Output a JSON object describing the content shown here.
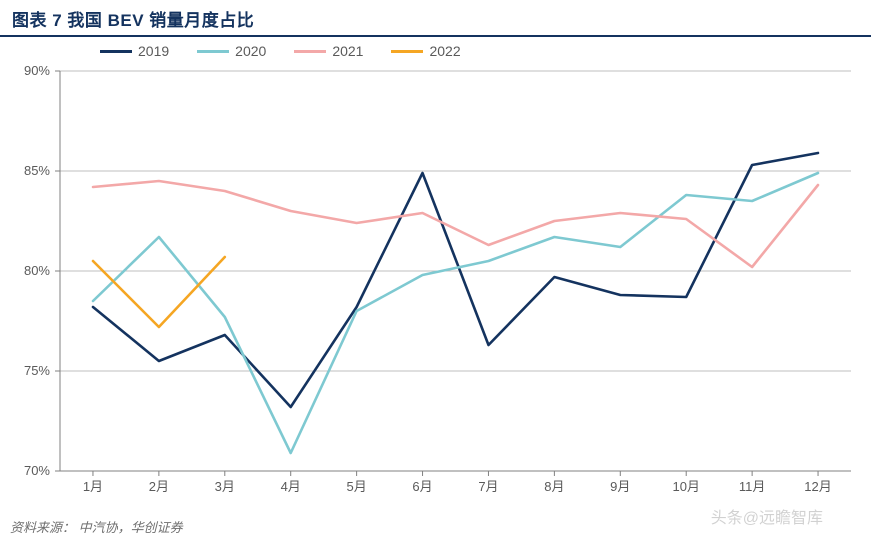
{
  "title": "图表 7 我国 BEV 销量月度占比",
  "source_label": "资料来源：  中汽协，华创证券",
  "watermark": "头条@远瞻智库",
  "chart": {
    "type": "line",
    "background_color": "#ffffff",
    "grid_color": "#bfbfbf",
    "axis_color": "#808080",
    "tick_font_color": "#5a5a5a",
    "tick_fontsize": 13,
    "title_color": "#14335f",
    "title_fontsize": 17,
    "line_width": 2.6,
    "ylim": [
      70,
      90
    ],
    "ytick_step": 5,
    "yticks": [
      "70%",
      "75%",
      "80%",
      "85%",
      "90%"
    ],
    "xlabels": [
      "1月",
      "2月",
      "3月",
      "4月",
      "5月",
      "6月",
      "7月",
      "8月",
      "9月",
      "10月",
      "11月",
      "12月"
    ],
    "legend": {
      "position": "top-left-inside"
    },
    "series": [
      {
        "name": "2019",
        "color": "#14335f",
        "values": [
          78.2,
          75.5,
          76.8,
          73.2,
          78.2,
          84.9,
          76.3,
          79.7,
          78.8,
          78.7,
          85.3,
          85.9
        ]
      },
      {
        "name": "2020",
        "color": "#7ec9d1",
        "values": [
          78.5,
          81.7,
          77.7,
          70.9,
          78.0,
          79.8,
          80.5,
          81.7,
          81.2,
          83.8,
          83.5,
          84.9
        ]
      },
      {
        "name": "2021",
        "color": "#f3a8a8",
        "values": [
          84.2,
          84.5,
          84.0,
          83.0,
          82.4,
          82.9,
          81.3,
          82.5,
          82.9,
          82.6,
          80.2,
          84.3
        ]
      },
      {
        "name": "2022",
        "color": "#f5a623",
        "values": [
          80.5,
          77.2,
          80.7
        ]
      }
    ]
  }
}
